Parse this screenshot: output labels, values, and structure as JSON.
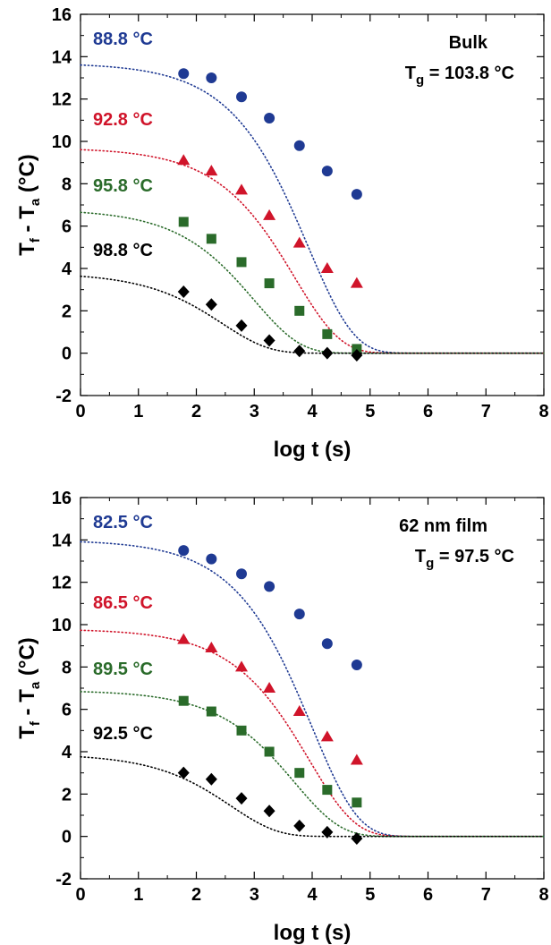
{
  "chart_data": [
    {
      "type": "scatter",
      "xlabel": "log t (s)",
      "ylabel": {
        "main1": "T",
        "sub1": "f",
        "mid": " - T",
        "sub2": "a",
        "tail": " (°C)"
      },
      "xlim": [
        0,
        8
      ],
      "ylim": [
        -2,
        16
      ],
      "x_ticks": [
        "0",
        "1",
        "2",
        "3",
        "4",
        "5",
        "6",
        "7",
        "8"
      ],
      "y_ticks": [
        "-2",
        "0",
        "2",
        "4",
        "6",
        "8",
        "10",
        "12",
        "14",
        "16"
      ],
      "grid": false,
      "annotation": {
        "line1": "Bulk",
        "tg_main": "T",
        "tg_sub": "g",
        "tg_rest": " = 103.8 °C"
      },
      "series": [
        {
          "name": "88.8 °C",
          "color": "#1f3a93",
          "marker": "circle",
          "x": [
            1.78,
            2.26,
            2.78,
            3.26,
            3.78,
            4.26,
            4.77
          ],
          "y": [
            13.2,
            13.0,
            12.1,
            11.1,
            9.8,
            8.6,
            7.5
          ],
          "fit": {
            "plateau": 13.7,
            "tau": 3.93,
            "beta": 0.55
          }
        },
        {
          "name": "92.8 °C",
          "color": "#d0142a",
          "marker": "triangle",
          "x": [
            1.78,
            2.26,
            2.78,
            3.26,
            3.78,
            4.26,
            4.77
          ],
          "y": [
            9.1,
            8.6,
            7.7,
            6.5,
            5.2,
            4.0,
            3.3
          ],
          "fit": {
            "plateau": 9.7,
            "tau": 3.7,
            "beta": 0.55
          }
        },
        {
          "name": "95.8 °C",
          "color": "#2a6b2a",
          "marker": "square",
          "x": [
            1.78,
            2.26,
            2.78,
            3.26,
            3.78,
            4.26,
            4.77
          ],
          "y": [
            6.2,
            5.4,
            4.3,
            3.3,
            2.0,
            0.9,
            0.2
          ],
          "fit": {
            "plateau": 6.8,
            "tau": 3.0,
            "beta": 0.55
          }
        },
        {
          "name": "98.8 °C",
          "color": "#000000",
          "marker": "diamond",
          "x": [
            1.78,
            2.26,
            2.78,
            3.26,
            3.78,
            4.26,
            4.77
          ],
          "y": [
            2.9,
            2.3,
            1.3,
            0.6,
            0.1,
            0.0,
            -0.1
          ],
          "fit": {
            "plateau": 3.8,
            "tau": 2.45,
            "beta": 0.55
          }
        }
      ]
    },
    {
      "type": "scatter",
      "xlabel": "log t (s)",
      "ylabel": {
        "main1": "T",
        "sub1": "f",
        "mid": " - T",
        "sub2": "a",
        "tail": " (°C)"
      },
      "xlim": [
        0,
        8
      ],
      "ylim": [
        -2,
        16
      ],
      "x_ticks": [
        "0",
        "1",
        "2",
        "3",
        "4",
        "5",
        "6",
        "7",
        "8"
      ],
      "y_ticks": [
        "-2",
        "0",
        "2",
        "4",
        "6",
        "8",
        "10",
        "12",
        "14",
        "16"
      ],
      "grid": false,
      "annotation": {
        "line1": "62 nm film",
        "tg_main": "T",
        "tg_sub": "g",
        "tg_rest": " = 97.5 °C"
      },
      "series": [
        {
          "name": "82.5 °C",
          "color": "#1f3a93",
          "marker": "circle",
          "x": [
            1.78,
            2.26,
            2.78,
            3.26,
            3.78,
            4.26,
            4.77
          ],
          "y": [
            13.5,
            13.1,
            12.4,
            11.8,
            10.5,
            9.1,
            8.1
          ],
          "fit": {
            "plateau": 14.0,
            "tau": 4.0,
            "beta": 0.55
          }
        },
        {
          "name": "86.5 °C",
          "color": "#d0142a",
          "marker": "triangle",
          "x": [
            1.78,
            2.26,
            2.78,
            3.26,
            3.78,
            4.26,
            4.77
          ],
          "y": [
            9.3,
            8.9,
            8.0,
            7.0,
            5.9,
            4.7,
            3.6
          ],
          "fit": {
            "plateau": 9.8,
            "tau": 3.95,
            "beta": 0.55
          }
        },
        {
          "name": "89.5 °C",
          "color": "#2a6b2a",
          "marker": "square",
          "x": [
            1.78,
            2.26,
            2.78,
            3.26,
            3.78,
            4.26,
            4.77
          ],
          "y": [
            6.4,
            5.9,
            5.0,
            4.0,
            3.0,
            2.2,
            1.6
          ],
          "fit": {
            "plateau": 6.9,
            "tau": 3.7,
            "beta": 0.55
          }
        },
        {
          "name": "92.5 °C",
          "color": "#000000",
          "marker": "diamond",
          "x": [
            1.78,
            2.26,
            2.78,
            3.26,
            3.78,
            4.26,
            4.77
          ],
          "y": [
            3.0,
            2.7,
            1.8,
            1.2,
            0.5,
            0.2,
            -0.1
          ],
          "fit": {
            "plateau": 3.9,
            "tau": 2.6,
            "beta": 0.55
          }
        }
      ]
    }
  ]
}
